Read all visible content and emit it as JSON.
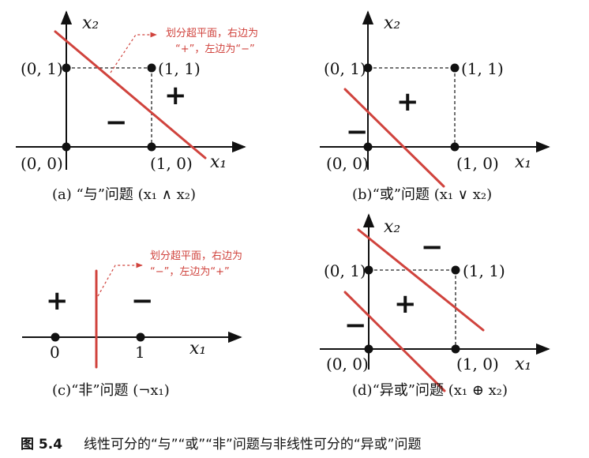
{
  "panels": {
    "a": {
      "caption": "(a) “与”问题 (x₁ ∧ x₂)",
      "x_axis_label": "x₁",
      "y_axis_label": "x₂",
      "points": [
        "(0, 0)",
        "(1, 0)",
        "(0, 1)",
        "(1, 1)"
      ],
      "plus": "+",
      "minus": "−",
      "annotation_line1": "划分超平面，右边为",
      "annotation_line2": "“+”，左边为“−”"
    },
    "b": {
      "caption": "(b)“或”问题 (x₁ ∨ x₂)",
      "x_axis_label": "x₁",
      "y_axis_label": "x₂",
      "points": [
        "(0, 0)",
        "(1, 0)",
        "(0, 1)",
        "(1, 1)"
      ],
      "plus": "+",
      "minus": "−"
    },
    "c": {
      "caption": "(c)“非”问题 (¬x₁)",
      "x_axis_label": "x₁",
      "points": [
        "0",
        "1"
      ],
      "plus": "+",
      "minus": "−",
      "annotation_line1": "划分超平面，右边为",
      "annotation_line2": "“−”，左边为“+”"
    },
    "d": {
      "caption": "(d)“异或”问题 (x₁ ⊕ x₂)",
      "x_axis_label": "x₁",
      "y_axis_label": "x₂",
      "points": [
        "(0, 0)",
        "(1, 0)",
        "(0, 1)",
        "(1, 1)"
      ],
      "plus": "+",
      "minus_top": "−",
      "minus_left": "−"
    }
  },
  "figure_caption": {
    "number": "图 5.4",
    "text": "线性可分的“与”“或”“非”问题与非线性可分的“异或”问题"
  }
}
